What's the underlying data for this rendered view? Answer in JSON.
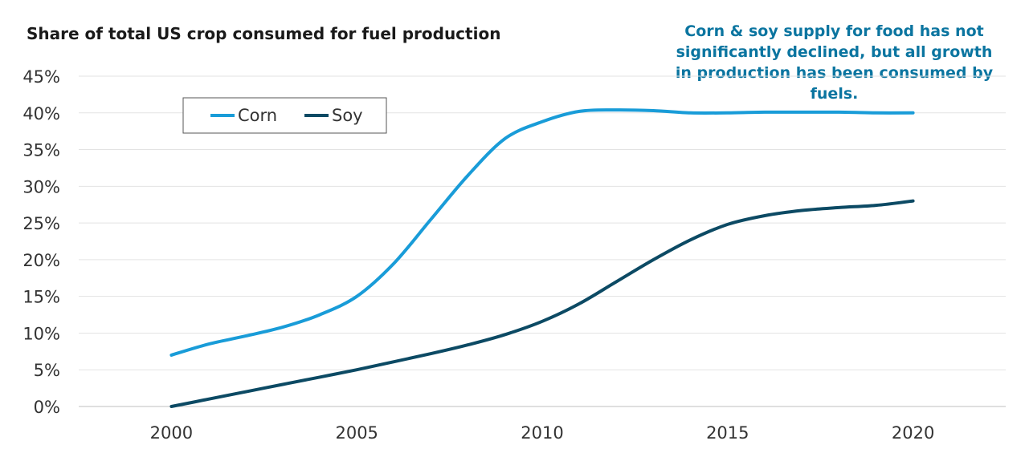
{
  "chart_data": {
    "type": "line",
    "title": "Share of total US crop consumed for fuel production",
    "annotation": "Corn & soy supply for food has not significantly declined, but all growth in production has been consumed by fuels.",
    "x": [
      2000,
      2001,
      2002,
      2003,
      2004,
      2005,
      2006,
      2007,
      2008,
      2009,
      2010,
      2011,
      2012,
      2013,
      2014,
      2015,
      2016,
      2017,
      2018,
      2019,
      2020
    ],
    "xticks": [
      "2000",
      "2005",
      "2010",
      "2015",
      "2020"
    ],
    "xlim": [
      1997.5,
      2022.5
    ],
    "ylim": [
      0,
      45
    ],
    "yticks": [
      "0%",
      "5%",
      "10%",
      "15%",
      "20%",
      "25%",
      "30%",
      "35%",
      "40%",
      "45%"
    ],
    "series": [
      {
        "name": "Corn",
        "color": "#199cd8",
        "values": [
          7,
          8.5,
          9.6,
          10.8,
          12.5,
          15,
          19.5,
          25.5,
          31.5,
          36.5,
          38.8,
          40.2,
          40.4,
          40.3,
          40,
          40,
          40.1,
          40.1,
          40.1,
          40,
          40
        ]
      },
      {
        "name": "Soy",
        "color": "#0c4a64",
        "values": [
          0,
          1,
          2,
          3,
          4,
          5,
          6.1,
          7.2,
          8.4,
          9.8,
          11.6,
          14,
          17,
          20,
          22.7,
          24.8,
          26,
          26.7,
          27.1,
          27.4,
          28
        ]
      }
    ],
    "grid": true,
    "legend_position": "top-left"
  }
}
